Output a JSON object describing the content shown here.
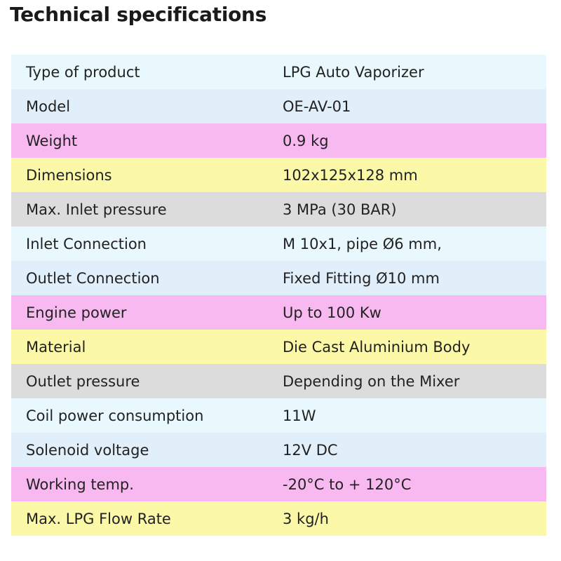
{
  "header": {
    "title": "Technical specifications"
  },
  "table": {
    "rows": [
      [
        "Type of product",
        "LPG Auto Vaporizer"
      ],
      [
        "Model",
        "OE-AV-01"
      ],
      [
        "Weight",
        "0.9 kg"
      ],
      [
        "Dimensions",
        "102x125x128 mm"
      ],
      [
        "Max. Inlet pressure",
        "3 MPa (30 BAR)"
      ],
      [
        "Inlet Connection",
        "M 10x1, pipe Ø6 mm,"
      ],
      [
        "Outlet Connection",
        "Fixed Fitting Ø10 mm"
      ],
      [
        "Engine power",
        "Up to 100 Kw"
      ],
      [
        "Material",
        "Die Cast Aluminium Body"
      ],
      [
        "Outlet pressure",
        "Depending on the Mixer"
      ],
      [
        "Coil power consumption",
        "11W"
      ],
      [
        "Solenoid voltage",
        "12V DC"
      ],
      [
        "Working temp.",
        "-20°C to + 120°C"
      ],
      [
        "Max. LPG Flow Rate",
        "3 kg/h"
      ]
    ]
  }
}
